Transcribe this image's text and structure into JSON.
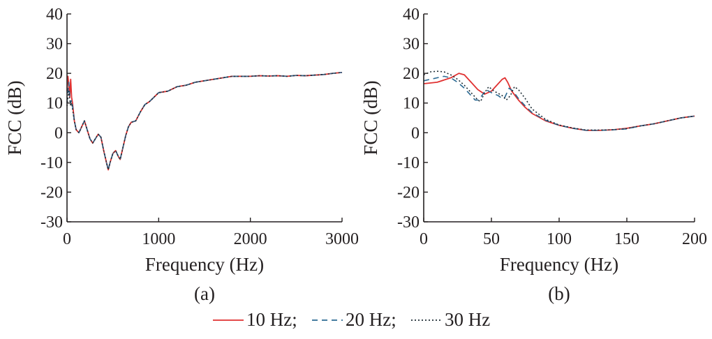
{
  "chart_data": [
    {
      "type": "line",
      "caption": "(a)",
      "xlabel": "Frequency (Hz)",
      "ylabel": "FCC (dB)",
      "xlim": [
        0,
        3000
      ],
      "ylim": [
        -30,
        40
      ],
      "xticks": [
        0,
        1000,
        2000,
        3000
      ],
      "yticks": [
        -30,
        -20,
        -10,
        0,
        10,
        20,
        30,
        40
      ],
      "grid": false,
      "series": [
        {
          "name": "10 Hz",
          "color": "#e03131",
          "dash": "solid",
          "points": [
            [
              0,
              14
            ],
            [
              10,
              19
            ],
            [
              20,
              16
            ],
            [
              30,
              12
            ],
            [
              40,
              18
            ],
            [
              50,
              12
            ],
            [
              60,
              10
            ],
            [
              80,
              4
            ],
            [
              100,
              1
            ],
            [
              130,
              0
            ],
            [
              160,
              2
            ],
            [
              190,
              4
            ],
            [
              220,
              1
            ],
            [
              250,
              -2
            ],
            [
              280,
              -3.5
            ],
            [
              310,
              -2
            ],
            [
              340,
              -0.5
            ],
            [
              370,
              -1.5
            ],
            [
              400,
              -6
            ],
            [
              430,
              -10
            ],
            [
              450,
              -12.5
            ],
            [
              470,
              -10
            ],
            [
              500,
              -7
            ],
            [
              530,
              -6
            ],
            [
              560,
              -8
            ],
            [
              580,
              -9
            ],
            [
              610,
              -5
            ],
            [
              640,
              -1
            ],
            [
              670,
              2
            ],
            [
              700,
              3.5
            ],
            [
              750,
              4
            ],
            [
              800,
              7
            ],
            [
              850,
              9.5
            ],
            [
              900,
              10.5
            ],
            [
              950,
              12
            ],
            [
              1000,
              13.5
            ],
            [
              1100,
              14
            ],
            [
              1200,
              15.5
            ],
            [
              1300,
              16
            ],
            [
              1400,
              17
            ],
            [
              1500,
              17.5
            ],
            [
              1600,
              18
            ],
            [
              1700,
              18.5
            ],
            [
              1800,
              19
            ],
            [
              1900,
              19
            ],
            [
              2000,
              19
            ],
            [
              2100,
              19.2
            ],
            [
              2200,
              19.1
            ],
            [
              2300,
              19.2
            ],
            [
              2400,
              19
            ],
            [
              2500,
              19.3
            ],
            [
              2600,
              19.2
            ],
            [
              2700,
              19.4
            ],
            [
              2800,
              19.6
            ],
            [
              2900,
              20
            ],
            [
              3000,
              20.3
            ]
          ]
        },
        {
          "name": "20 Hz",
          "color": "#2b6a93",
          "dash": "8 6",
          "points": [
            [
              0,
              10
            ],
            [
              10,
              14
            ],
            [
              20,
              17
            ],
            [
              30,
              12
            ],
            [
              40,
              10
            ],
            [
              50,
              11
            ],
            [
              60,
              9
            ],
            [
              80,
              4
            ],
            [
              100,
              1
            ],
            [
              130,
              0
            ],
            [
              160,
              2
            ],
            [
              190,
              4
            ],
            [
              220,
              1
            ],
            [
              250,
              -2
            ],
            [
              280,
              -3.5
            ],
            [
              310,
              -2
            ],
            [
              340,
              -0.5
            ],
            [
              370,
              -1.5
            ],
            [
              400,
              -6
            ],
            [
              430,
              -10
            ],
            [
              450,
              -12.5
            ],
            [
              470,
              -10
            ],
            [
              500,
              -7
            ],
            [
              530,
              -6
            ],
            [
              560,
              -8
            ],
            [
              580,
              -9
            ],
            [
              610,
              -5
            ],
            [
              640,
              -1
            ],
            [
              670,
              2
            ],
            [
              700,
              3.5
            ],
            [
              750,
              4
            ],
            [
              800,
              7
            ],
            [
              850,
              9.5
            ],
            [
              900,
              10.5
            ],
            [
              950,
              12
            ],
            [
              1000,
              13.5
            ],
            [
              1100,
              14
            ],
            [
              1200,
              15.5
            ],
            [
              1300,
              16
            ],
            [
              1400,
              17
            ],
            [
              1500,
              17.5
            ],
            [
              1600,
              18
            ],
            [
              1700,
              18.5
            ],
            [
              1800,
              19
            ],
            [
              1900,
              19
            ],
            [
              2000,
              19
            ],
            [
              2100,
              19.2
            ],
            [
              2200,
              19.1
            ],
            [
              2300,
              19.2
            ],
            [
              2400,
              19
            ],
            [
              2500,
              19.3
            ],
            [
              2600,
              19.2
            ],
            [
              2700,
              19.4
            ],
            [
              2800,
              19.6
            ],
            [
              2900,
              20
            ],
            [
              3000,
              20.3
            ]
          ]
        },
        {
          "name": "30 Hz",
          "color": "#1c2a33",
          "dash": "2 3",
          "points": [
            [
              0,
              9
            ],
            [
              10,
              12
            ],
            [
              20,
              14
            ],
            [
              30,
              11
            ],
            [
              40,
              9
            ],
            [
              50,
              10
            ],
            [
              60,
              8
            ],
            [
              80,
              4
            ],
            [
              100,
              1
            ],
            [
              130,
              0
            ],
            [
              160,
              2
            ],
            [
              190,
              4
            ],
            [
              220,
              1
            ],
            [
              250,
              -2
            ],
            [
              280,
              -3.5
            ],
            [
              310,
              -2
            ],
            [
              340,
              -0.5
            ],
            [
              370,
              -1.5
            ],
            [
              400,
              -6
            ],
            [
              430,
              -10
            ],
            [
              450,
              -12.5
            ],
            [
              470,
              -10
            ],
            [
              500,
              -7
            ],
            [
              530,
              -6
            ],
            [
              560,
              -8
            ],
            [
              580,
              -9
            ],
            [
              610,
              -5
            ],
            [
              640,
              -1
            ],
            [
              670,
              2
            ],
            [
              700,
              3.5
            ],
            [
              750,
              4
            ],
            [
              800,
              7
            ],
            [
              850,
              9.5
            ],
            [
              900,
              10.5
            ],
            [
              950,
              12
            ],
            [
              1000,
              13.5
            ],
            [
              1100,
              14
            ],
            [
              1200,
              15.5
            ],
            [
              1300,
              16
            ],
            [
              1400,
              17
            ],
            [
              1500,
              17.5
            ],
            [
              1600,
              18
            ],
            [
              1700,
              18.5
            ],
            [
              1800,
              19
            ],
            [
              1900,
              19
            ],
            [
              2000,
              19
            ],
            [
              2100,
              19.2
            ],
            [
              2200,
              19.1
            ],
            [
              2300,
              19.2
            ],
            [
              2400,
              19
            ],
            [
              2500,
              19.3
            ],
            [
              2600,
              19.2
            ],
            [
              2700,
              19.4
            ],
            [
              2800,
              19.6
            ],
            [
              2900,
              20
            ],
            [
              3000,
              20.3
            ]
          ]
        }
      ]
    },
    {
      "type": "line",
      "caption": "(b)",
      "xlabel": "Frequency (Hz)",
      "ylabel": "FCC (dB)",
      "xlim": [
        0,
        200
      ],
      "ylim": [
        -30,
        40
      ],
      "xticks": [
        0,
        50,
        100,
        150,
        200
      ],
      "yticks": [
        -30,
        -20,
        -10,
        0,
        10,
        20,
        30,
        40
      ],
      "grid": false,
      "series": [
        {
          "name": "10 Hz",
          "color": "#e03131",
          "dash": "solid",
          "points": [
            [
              0,
              16.5
            ],
            [
              10,
              17
            ],
            [
              20,
              18.5
            ],
            [
              26,
              20
            ],
            [
              30,
              19.5
            ],
            [
              35,
              17
            ],
            [
              40,
              14.5
            ],
            [
              45,
              13
            ],
            [
              50,
              14
            ],
            [
              55,
              16.5
            ],
            [
              58,
              18
            ],
            [
              60,
              18.5
            ],
            [
              62,
              17
            ],
            [
              65,
              14
            ],
            [
              70,
              11
            ],
            [
              75,
              8.5
            ],
            [
              80,
              6.5
            ],
            [
              90,
              4
            ],
            [
              100,
              2.5
            ],
            [
              110,
              1.5
            ],
            [
              120,
              0.8
            ],
            [
              130,
              0.8
            ],
            [
              140,
              1
            ],
            [
              150,
              1.5
            ],
            [
              160,
              2.3
            ],
            [
              170,
              3
            ],
            [
              180,
              4
            ],
            [
              190,
              5
            ],
            [
              200,
              5.6
            ]
          ]
        },
        {
          "name": "20 Hz",
          "color": "#2b6a93",
          "dash": "8 6",
          "points": [
            [
              0,
              17.5
            ],
            [
              5,
              18
            ],
            [
              10,
              18.5
            ],
            [
              15,
              19
            ],
            [
              20,
              18.5
            ],
            [
              25,
              17
            ],
            [
              30,
              15
            ],
            [
              35,
              12.5
            ],
            [
              38,
              11
            ],
            [
              40,
              11
            ],
            [
              43,
              12.5
            ],
            [
              46,
              14.5
            ],
            [
              50,
              13.5
            ],
            [
              55,
              12.5
            ],
            [
              58,
              11.5
            ],
            [
              60,
              12
            ],
            [
              63,
              15
            ],
            [
              66,
              14
            ],
            [
              70,
              11.5
            ],
            [
              75,
              9
            ],
            [
              80,
              6.8
            ],
            [
              90,
              4.2
            ],
            [
              100,
              2.5
            ],
            [
              110,
              1.5
            ],
            [
              120,
              0.8
            ],
            [
              130,
              0.8
            ],
            [
              140,
              1
            ],
            [
              150,
              1.3
            ],
            [
              160,
              2.3
            ],
            [
              170,
              3
            ],
            [
              180,
              4
            ],
            [
              190,
              5
            ],
            [
              200,
              5.6
            ]
          ]
        },
        {
          "name": "30 Hz",
          "color": "#1c2a33",
          "dash": "2 3",
          "points": [
            [
              0,
              19.5
            ],
            [
              5,
              20.5
            ],
            [
              10,
              20.7
            ],
            [
              15,
              20.5
            ],
            [
              20,
              19.5
            ],
            [
              25,
              18
            ],
            [
              30,
              16
            ],
            [
              35,
              13.5
            ],
            [
              40,
              11
            ],
            [
              42,
              10.5
            ],
            [
              45,
              13.5
            ],
            [
              48,
              15.5
            ],
            [
              52,
              14
            ],
            [
              58,
              12.5
            ],
            [
              61,
              11
            ],
            [
              64,
              12.5
            ],
            [
              67,
              15.5
            ],
            [
              70,
              14.5
            ],
            [
              75,
              11.5
            ],
            [
              80,
              8
            ],
            [
              90,
              4.5
            ],
            [
              100,
              2.6
            ],
            [
              110,
              1.6
            ],
            [
              120,
              0.9
            ],
            [
              130,
              0.9
            ],
            [
              140,
              1
            ],
            [
              150,
              1.4
            ],
            [
              160,
              2.3
            ],
            [
              170,
              3
            ],
            [
              180,
              4
            ],
            [
              190,
              5
            ],
            [
              200,
              5.6
            ]
          ]
        }
      ]
    }
  ],
  "legend": {
    "items": [
      {
        "label": "10 Hz;",
        "color": "#e03131",
        "dash": "solid"
      },
      {
        "label": "20 Hz;",
        "color": "#2b6a93",
        "dash": "8 6"
      },
      {
        "label": "30 Hz",
        "color": "#1c2a33",
        "dash": "2 3"
      }
    ]
  }
}
